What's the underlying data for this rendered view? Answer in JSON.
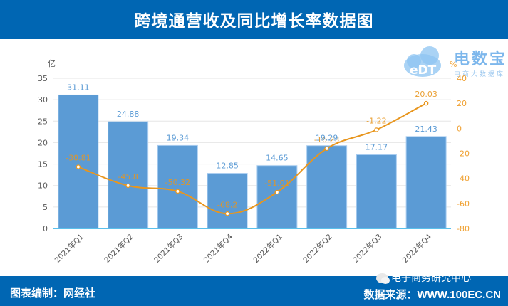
{
  "header": {
    "title": "跨境通营收及同比增长率数据图"
  },
  "footer": {
    "left_label": "图表编制：网经社",
    "right_label": "数据来源：WWW.100EC.CN",
    "wechat_watermark": "电子商务研究中心"
  },
  "logo": {
    "brand": "电数宝",
    "mark": "eDT",
    "subtitle": "电商大数据库"
  },
  "colors": {
    "header_bg": "#0066B3",
    "bar": "#5B9BD5",
    "line": "#E8961E",
    "bar_label": "#5B9BD5",
    "line_label": "#E8961E",
    "axis_right": "#F0A030"
  },
  "chart_data": {
    "type": "bar+line",
    "title": "跨境通营收及同比增长率数据图",
    "categories": [
      "2021年Q1",
      "2021年Q2",
      "2021年Q3",
      "2021年Q4",
      "2022年Q1",
      "2022年Q2",
      "2022年Q3",
      "2022年Q4"
    ],
    "series": [
      {
        "name": "营收",
        "type": "bar",
        "axis": "left",
        "unit": "亿",
        "values": [
          31.11,
          24.88,
          19.34,
          12.85,
          14.65,
          19.29,
          17.17,
          21.43
        ]
      },
      {
        "name": "同比增长率",
        "type": "line",
        "axis": "right",
        "unit": "%",
        "values": [
          -30.81,
          -45.8,
          -50.32,
          -68.2,
          -51.01,
          -16.23,
          -1.22,
          20.03
        ]
      }
    ],
    "ylabel_left": "亿",
    "ylabel_right": "%",
    "ylim_left": [
      0,
      35
    ],
    "yticks_left": [
      0,
      5,
      10,
      15,
      20,
      25,
      30,
      35
    ],
    "ylim_right": [
      -80,
      40
    ],
    "yticks_right": [
      -80,
      -60,
      -40,
      -20,
      0,
      20,
      40
    ],
    "grid": true,
    "legend": "none"
  }
}
